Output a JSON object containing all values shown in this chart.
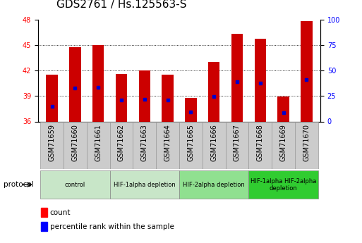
{
  "title": "GDS2761 / Hs.125563-S",
  "samples": [
    "GSM71659",
    "GSM71660",
    "GSM71661",
    "GSM71662",
    "GSM71663",
    "GSM71664",
    "GSM71665",
    "GSM71666",
    "GSM71667",
    "GSM71668",
    "GSM71669",
    "GSM71670"
  ],
  "bar_tops": [
    41.5,
    44.7,
    45.0,
    41.6,
    42.0,
    41.5,
    38.8,
    43.0,
    46.3,
    45.7,
    38.9,
    47.8
  ],
  "bar_bottom": 36,
  "blue_markers": [
    37.8,
    39.9,
    40.0,
    38.5,
    38.6,
    38.5,
    37.1,
    38.9,
    40.7,
    40.5,
    37.0,
    40.9
  ],
  "ylim_left": [
    36,
    48
  ],
  "yticks_left": [
    36,
    39,
    42,
    45,
    48
  ],
  "ylim_right": [
    0,
    100
  ],
  "yticks_right": [
    0,
    25,
    50,
    75,
    100
  ],
  "bar_color": "#cc0000",
  "marker_color": "#0000cc",
  "gridline_y": [
    39,
    42,
    45
  ],
  "groups": [
    {
      "label": "control",
      "start": 0,
      "end": 3
    },
    {
      "label": "HIF-1alpha depletion",
      "start": 3,
      "end": 6
    },
    {
      "label": "HIF-2alpha depletion",
      "start": 6,
      "end": 9
    },
    {
      "label": "HIF-1alpha HIF-2alpha\ndepletion",
      "start": 9,
      "end": 12
    }
  ],
  "group_colors": [
    "#c8e6c8",
    "#c8e6c8",
    "#90e090",
    "#30cc30"
  ],
  "protocol_label": "protocol",
  "legend_count_label": "count",
  "legend_pct_label": "percentile rank within the sample",
  "bar_width": 0.5,
  "tick_label_fontsize": 7,
  "title_fontsize": 11
}
